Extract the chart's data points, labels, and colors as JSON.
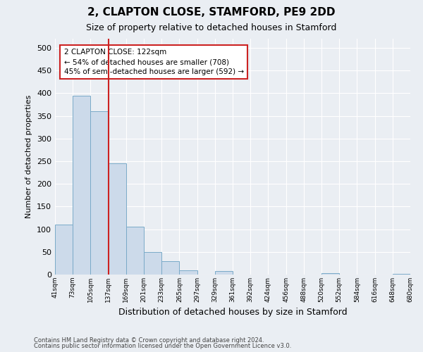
{
  "title1": "2, CLAPTON CLOSE, STAMFORD, PE9 2DD",
  "title2": "Size of property relative to detached houses in Stamford",
  "xlabel": "Distribution of detached houses by size in Stamford",
  "ylabel": "Number of detached properties",
  "footnote1": "Contains HM Land Registry data © Crown copyright and database right 2024.",
  "footnote2": "Contains public sector information licensed under the Open Government Licence v3.0.",
  "bar_values": [
    110,
    395,
    360,
    245,
    105,
    50,
    30,
    10,
    0,
    7,
    0,
    0,
    0,
    0,
    0,
    3,
    0,
    0,
    0,
    2
  ],
  "bar_labels": [
    "41sqm",
    "73sqm",
    "105sqm",
    "137sqm",
    "169sqm",
    "201sqm",
    "233sqm",
    "265sqm",
    "297sqm",
    "329sqm",
    "361sqm",
    "392sqm",
    "424sqm",
    "456sqm",
    "488sqm",
    "520sqm",
    "552sqm",
    "584sqm",
    "616sqm",
    "648sqm",
    "680sqm"
  ],
  "bar_color": "#ccdaea",
  "bar_edge_color": "#7aaac8",
  "vline_color": "#cc2222",
  "annotation_text": "2 CLAPTON CLOSE: 122sqm\n← 54% of detached houses are smaller (708)\n45% of semi-detached houses are larger (592) →",
  "annotation_box_color": "#cc2222",
  "ylim": [
    0,
    520
  ],
  "yticks": [
    0,
    50,
    100,
    150,
    200,
    250,
    300,
    350,
    400,
    450,
    500
  ],
  "background_color": "#eaeef3",
  "plot_bg_color": "#eaeef3",
  "grid_color": "#ffffff",
  "title1_fontsize": 11,
  "title2_fontsize": 9,
  "ylabel_fontsize": 8,
  "xlabel_fontsize": 9,
  "footnote_fontsize": 6
}
